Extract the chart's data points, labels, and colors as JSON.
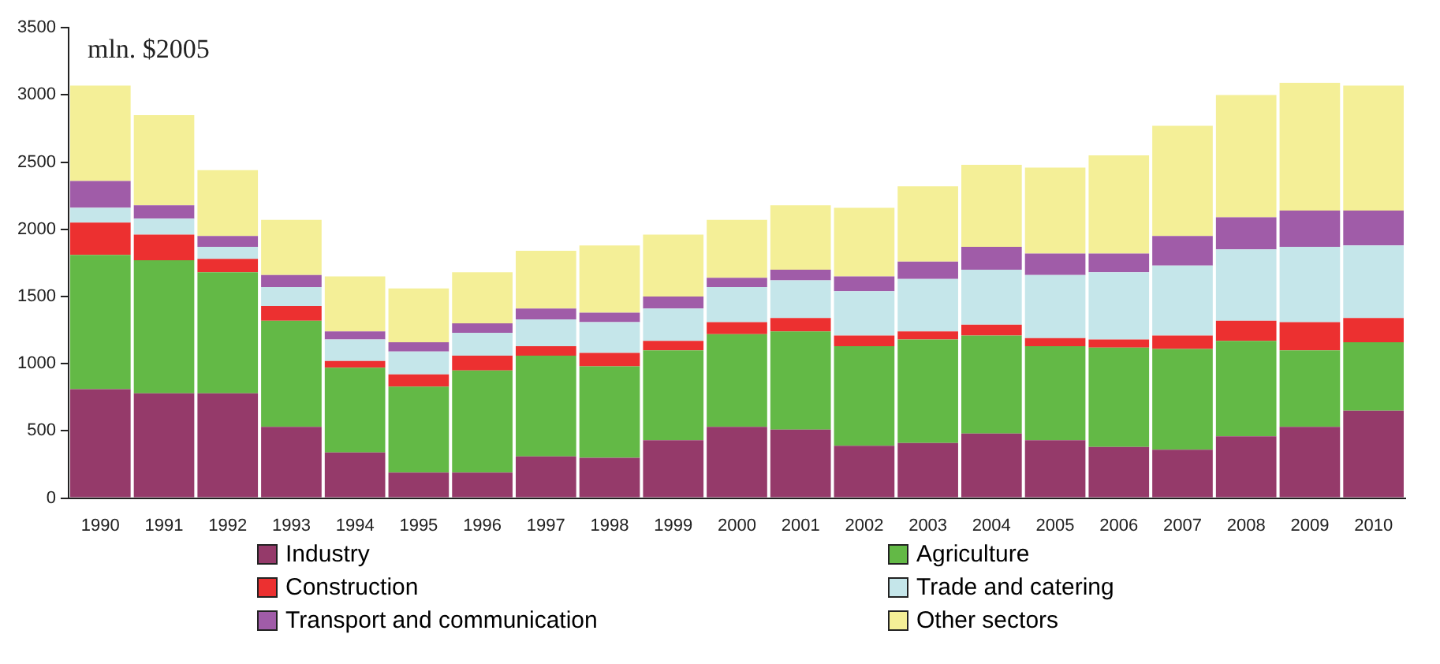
{
  "chart_data": {
    "type": "bar",
    "stacked": true,
    "annotations": [
      "mln. $2005"
    ],
    "categories": [
      "1990",
      "1991",
      "1992",
      "1993",
      "1994",
      "1995",
      "1996",
      "1997",
      "1998",
      "1999",
      "2000",
      "2001",
      "2002",
      "2003",
      "2004",
      "2005",
      "2006",
      "2007",
      "2008",
      "2009",
      "2010"
    ],
    "ylim": [
      0,
      3500
    ],
    "yticks": [
      0,
      500,
      1000,
      1500,
      2000,
      2500,
      3000,
      3500
    ],
    "grid": false,
    "legend": "bottom",
    "series": [
      {
        "name": "Industry",
        "color": "#953a6a",
        "values": [
          810,
          780,
          780,
          530,
          340,
          190,
          190,
          310,
          300,
          430,
          530,
          510,
          390,
          410,
          480,
          430,
          380,
          360,
          460,
          530,
          650
        ]
      },
      {
        "name": "Agriculture",
        "color": "#63b946",
        "values": [
          1000,
          990,
          900,
          790,
          630,
          640,
          760,
          750,
          680,
          670,
          690,
          730,
          740,
          770,
          730,
          700,
          740,
          750,
          710,
          570,
          510
        ]
      },
      {
        "name": "Construction",
        "color": "#ec3030",
        "values": [
          240,
          190,
          100,
          110,
          50,
          90,
          110,
          70,
          100,
          70,
          90,
          100,
          80,
          60,
          80,
          60,
          60,
          100,
          150,
          210,
          180
        ]
      },
      {
        "name": "Trade and catering",
        "color": "#c5e6ea",
        "values": [
          110,
          120,
          90,
          140,
          160,
          170,
          170,
          200,
          230,
          240,
          260,
          280,
          330,
          390,
          410,
          470,
          500,
          520,
          530,
          560,
          540
        ]
      },
      {
        "name": "Transport and communication",
        "color": "#a05ca8",
        "values": [
          200,
          100,
          80,
          90,
          60,
          70,
          70,
          80,
          70,
          90,
          70,
          80,
          110,
          130,
          170,
          160,
          140,
          220,
          240,
          270,
          260
        ]
      },
      {
        "name": "Other sectors",
        "color": "#f4ef97",
        "values": [
          710,
          670,
          490,
          410,
          410,
          400,
          380,
          430,
          500,
          460,
          430,
          480,
          510,
          560,
          610,
          640,
          730,
          820,
          910,
          950,
          930
        ]
      }
    ]
  }
}
